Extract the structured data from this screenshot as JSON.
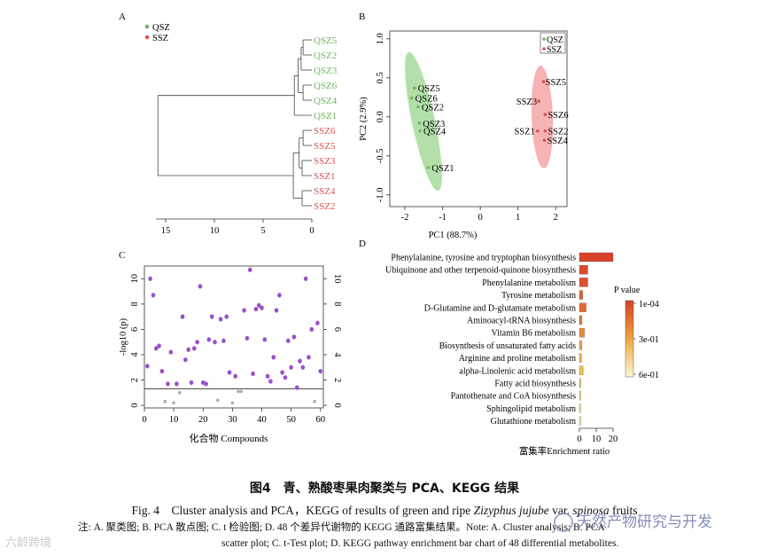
{
  "panelA": {
    "label": "A",
    "legend": [
      {
        "label": "QSZ",
        "color": "#6fb85f"
      },
      {
        "label": "SSZ",
        "color": "#e05050"
      }
    ],
    "leaves": [
      {
        "name": "QSZ5",
        "group": "QSZ"
      },
      {
        "name": "QSZ2",
        "group": "QSZ"
      },
      {
        "name": "QSZ3",
        "group": "QSZ"
      },
      {
        "name": "QSZ6",
        "group": "QSZ"
      },
      {
        "name": "QSZ4",
        "group": "QSZ"
      },
      {
        "name": "QSZ1",
        "group": "QSZ"
      },
      {
        "name": "SSZ6",
        "group": "SSZ"
      },
      {
        "name": "SSZ5",
        "group": "SSZ"
      },
      {
        "name": "SSZ3",
        "group": "SSZ"
      },
      {
        "name": "SSZ1",
        "group": "SSZ"
      },
      {
        "name": "SSZ4",
        "group": "SSZ"
      },
      {
        "name": "SSZ2",
        "group": "SSZ"
      }
    ],
    "axis_ticks": [
      "15",
      "10",
      "5",
      "0"
    ]
  },
  "panelB": {
    "label": "B",
    "legend": [
      {
        "label": "QSZ",
        "color": "#6fb85f"
      },
      {
        "label": "SSZ",
        "color": "#e05050"
      }
    ],
    "xlabel": "PC1 (88.7%)",
    "ylabel": "PC2 (2.9%)",
    "x_ticks": [
      "-2",
      "-1",
      "0",
      "1",
      "2"
    ],
    "y_ticks": [
      "1.0",
      "0.5",
      "0.0",
      "-0.5",
      "-1.0"
    ],
    "points": [
      {
        "name": "QSZ5",
        "group": "QSZ",
        "x": -1.75,
        "y": 0.37
      },
      {
        "name": "QSZ6",
        "group": "QSZ",
        "x": -1.82,
        "y": 0.24
      },
      {
        "name": "QSZ2",
        "group": "QSZ",
        "x": -1.65,
        "y": 0.13
      },
      {
        "name": "QSZ3",
        "group": "QSZ",
        "x": -1.62,
        "y": -0.08
      },
      {
        "name": "QSZ4",
        "group": "QSZ",
        "x": -1.6,
        "y": -0.18
      },
      {
        "name": "QSZ1",
        "group": "QSZ",
        "x": -1.38,
        "y": -0.65
      },
      {
        "name": "SSZ5",
        "group": "SSZ",
        "x": 1.68,
        "y": 0.45
      },
      {
        "name": "SSZ3",
        "group": "SSZ",
        "x": 1.55,
        "y": 0.2
      },
      {
        "name": "SSZ6",
        "group": "SSZ",
        "x": 1.72,
        "y": 0.03
      },
      {
        "name": "SSZ1",
        "group": "SSZ",
        "x": 1.52,
        "y": -0.18
      },
      {
        "name": "SSZ2",
        "group": "SSZ",
        "x": 1.72,
        "y": -0.18
      },
      {
        "name": "SSZ4",
        "group": "SSZ",
        "x": 1.7,
        "y": -0.3
      }
    ]
  },
  "panelC": {
    "label": "C",
    "xlabel": "化合物 Compounds",
    "ylabel": "-log10 (p)",
    "x_ticks": [
      "0",
      "10",
      "20",
      "30",
      "40",
      "50",
      "60"
    ],
    "y_ticks": [
      "0",
      "2",
      "4",
      "6",
      "8",
      "10"
    ],
    "threshold": 1.3,
    "significant_color": "#9b4fc9",
    "nonsignificant_color": "#aaaaaa"
  },
  "panelD": {
    "label": "D",
    "xlabel": "富集率Enrichment ratio",
    "x_ticks": [
      "0",
      "10",
      "20"
    ],
    "legend_title": "P value",
    "legend_ticks": [
      "1e-04",
      "3e-01",
      "6e-01"
    ],
    "pathways": [
      {
        "name": "Phenylalanine, tyrosine and tryptophan biosynthesis",
        "ratio": 20,
        "color": "#d8412a"
      },
      {
        "name": "Ubiquinone and other terpenoid-quinone biosynthesis",
        "ratio": 5,
        "color": "#dd4a2c"
      },
      {
        "name": "Phenylalanine metabolism",
        "ratio": 5,
        "color": "#de4f2d"
      },
      {
        "name": "Tyrosine metabolism",
        "ratio": 2,
        "color": "#e0652f"
      },
      {
        "name": "D-Glutamine and D-glutamate metabolism",
        "ratio": 4,
        "color": "#e26a30"
      },
      {
        "name": "Aminoacyl-tRNA biosynthesis",
        "ratio": 1.5,
        "color": "#e57a34"
      },
      {
        "name": "Vitamin B6 metabolism",
        "ratio": 3,
        "color": "#e8893a"
      },
      {
        "name": "Biosynthesis of unsaturated fatty acids",
        "ratio": 1.5,
        "color": "#eda040"
      },
      {
        "name": "Arginine and proline metabolism",
        "ratio": 1.2,
        "color": "#f0b046"
      },
      {
        "name": "alpha-Linolenic acid metabolism",
        "ratio": 2.2,
        "color": "#f3c24e"
      },
      {
        "name": "Fatty acid biosynthesis",
        "ratio": 0.9,
        "color": "#f6d25c"
      },
      {
        "name": "Pantothenate and CoA biosynthesis",
        "ratio": 0.8,
        "color": "#f7da6a"
      },
      {
        "name": "Sphingolipid metabolism",
        "ratio": 0.7,
        "color": "#f9e27e"
      },
      {
        "name": "Glutathione metabolism",
        "ratio": 0.5,
        "color": "#fbec9a"
      }
    ]
  },
  "chart_data": [
    {
      "type": "dendrogram",
      "panel": "A",
      "leaves": [
        "QSZ5",
        "QSZ2",
        "QSZ3",
        "QSZ6",
        "QSZ4",
        "QSZ1",
        "SSZ6",
        "SSZ5",
        "SSZ3",
        "SSZ1",
        "SSZ4",
        "SSZ2"
      ],
      "legend": [
        "QSZ",
        "SSZ"
      ]
    },
    {
      "type": "scatter",
      "panel": "B",
      "xlabel": "PC1 (88.7%)",
      "ylabel": "PC2 (2.9%)",
      "xlim": [
        -2.4,
        2.3
      ],
      "ylim": [
        -1.15,
        1.1
      ],
      "series": [
        {
          "name": "QSZ",
          "points": [
            [
              -1.75,
              0.37
            ],
            [
              -1.82,
              0.24
            ],
            [
              -1.65,
              0.13
            ],
            [
              -1.62,
              -0.08
            ],
            [
              -1.6,
              -0.18
            ],
            [
              -1.38,
              -0.65
            ]
          ]
        },
        {
          "name": "SSZ",
          "points": [
            [
              1.68,
              0.45
            ],
            [
              1.55,
              0.2
            ],
            [
              1.72,
              0.03
            ],
            [
              1.52,
              -0.18
            ],
            [
              1.72,
              -0.18
            ],
            [
              1.7,
              -0.3
            ]
          ]
        }
      ]
    },
    {
      "type": "scatter",
      "panel": "C",
      "xlabel": "化合物 Compounds",
      "ylabel": "-log10 (p)",
      "xlim": [
        0,
        61
      ],
      "ylim": [
        -0.2,
        11
      ],
      "x": [
        1,
        2,
        3,
        4,
        5,
        6,
        7,
        8,
        9,
        10,
        11,
        12,
        13,
        14,
        15,
        16,
        17,
        18,
        19,
        20,
        21,
        22,
        23,
        24,
        25,
        26,
        27,
        28,
        29,
        30,
        31,
        32,
        33,
        34,
        35,
        36,
        37,
        38,
        39,
        40,
        41,
        42,
        43,
        44,
        45,
        46,
        47,
        48,
        49,
        50,
        51,
        52,
        53,
        54,
        55,
        56,
        57,
        58,
        59,
        60
      ],
      "y": [
        3.1,
        10,
        8.7,
        4.5,
        4.7,
        2.7,
        0.3,
        1.7,
        4.2,
        0.2,
        1.7,
        1,
        7,
        3.6,
        4.4,
        1.8,
        4.5,
        5,
        9.4,
        1.8,
        1.7,
        5.2,
        7,
        5,
        0.4,
        6.8,
        5.1,
        7,
        2.6,
        0.2,
        2.3,
        1.1,
        1.1,
        7.5,
        5.3,
        10.7,
        2.5,
        7.6,
        7.9,
        7.7,
        5.2,
        2.3,
        1.9,
        3.8,
        7.5,
        8.7,
        2.6,
        2.2,
        5.1,
        3,
        5.4,
        1.4,
        3.5,
        3,
        10,
        3.8,
        6,
        0.3,
        6.5,
        2.7
      ],
      "threshold": 1.3
    },
    {
      "type": "bar",
      "panel": "D",
      "orientation": "horizontal",
      "xlabel": "富集率Enrichment ratio",
      "categories": [
        "Phenylalanine, tyrosine and tryptophan biosynthesis",
        "Ubiquinone and other terpenoid-quinone biosynthesis",
        "Phenylalanine metabolism",
        "Tyrosine metabolism",
        "D-Glutamine and D-glutamate metabolism",
        "Aminoacyl-tRNA biosynthesis",
        "Vitamin B6 metabolism",
        "Biosynthesis of unsaturated fatty acids",
        "Arginine and proline metabolism",
        "alpha-Linolenic acid metabolism",
        "Fatty acid biosynthesis",
        "Pantothenate and CoA biosynthesis",
        "Sphingolipid metabolism",
        "Glutathione metabolism"
      ],
      "values": [
        20,
        5,
        5,
        2,
        4,
        1.5,
        3,
        1.5,
        1.2,
        2.2,
        0.9,
        0.8,
        0.7,
        0.5
      ],
      "legend_title": "P value",
      "legend_ticks": [
        "1e-04",
        "3e-01",
        "6e-01"
      ]
    }
  ],
  "caption": {
    "title_cn": "图4　青、熟酸枣果肉聚类与 PCA、KEGG 结果",
    "title_en_prefix": "Fig. 4　Cluster analysis and PCA，KEGG of results of green and ripe ",
    "title_en_species": "Zizyphus jujube",
    "title_en_var": " var. ",
    "title_en_variety": "spinosa",
    "title_en_suffix": " fruits",
    "note_line1": "注: A. 聚类图; B. PCA 散点图; C. t 检验图; D. 48 个差异代谢物的 KEGG 通路富集结果。Note: A. Cluster analysis; B. PCA",
    "note_line2": "scatter plot; C. t-Test plot; D. KEGG pathway enrichment bar chart of 48 differential metabolites."
  },
  "watermark_left": "六龄跨境",
  "watermark_right": "天然产物研究与开发"
}
